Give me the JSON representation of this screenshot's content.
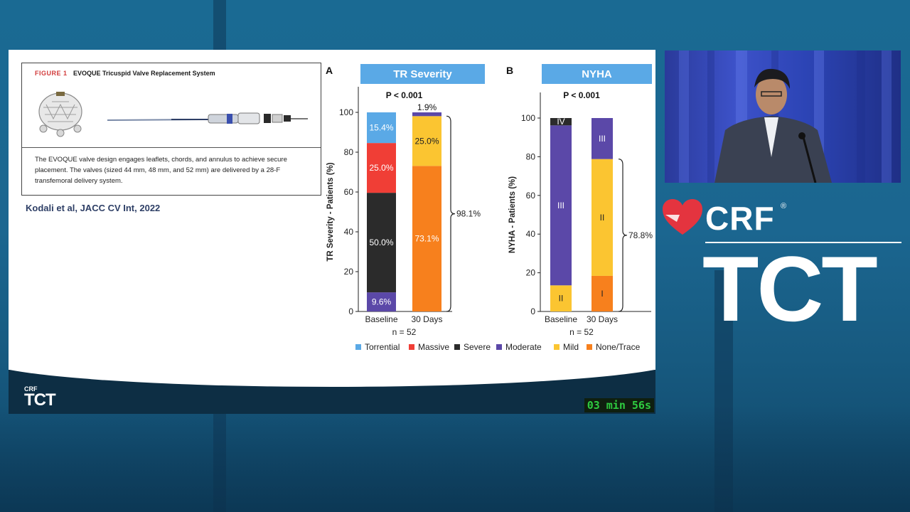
{
  "figure": {
    "number": "FIGURE 1",
    "title": "EVOQUE Tricuspid Valve Replacement System",
    "caption_lines": [
      "The EVOQUE valve design engages leaflets, chords, and annulus to achieve secure",
      "placement. The valves (sized 44 mm, 48 mm, and 52 mm) are delivered by a 28-F",
      "transfemoral delivery system."
    ]
  },
  "citation": "Kodali et al, JACC CV Int, 2022",
  "timer": "03 min 56s",
  "slide_footer": {
    "crf": "CRF",
    "tct": "TCT"
  },
  "brand": {
    "crf": "CRF",
    "reg": "®",
    "tct": "TCT"
  },
  "colors": {
    "Torrential": "#5aa9e6",
    "Massive": "#f03e36",
    "Severe": "#2b2b2b",
    "Moderate": "#5b48a8",
    "Mild": "#fbc531",
    "None/Trace": "#f7801d",
    "header_bg": "#5aa9e6",
    "IV": "#2b2b2b",
    "III": "#5b48a8",
    "II": "#fbc531",
    "I": "#f7801d"
  },
  "chart_data": [
    {
      "type": "bar",
      "stacked": true,
      "panel": "A",
      "header": "TR Severity",
      "pvalue": "P < 0.001",
      "ylabel": "TR Severity - Patients (%)",
      "ylim": [
        0,
        100
      ],
      "yticks": [
        "0",
        "20",
        "40",
        "60",
        "80",
        "100"
      ],
      "categories": [
        "Baseline",
        "30 Days"
      ],
      "n_label": "n = 52",
      "series": [
        {
          "name": "None/Trace",
          "values": [
            0,
            73.1
          ],
          "labels": [
            "",
            "73.1%"
          ]
        },
        {
          "name": "Mild",
          "values": [
            0,
            25.0
          ],
          "labels": [
            "",
            "25.0%"
          ]
        },
        {
          "name": "Moderate",
          "values": [
            9.6,
            1.9
          ],
          "labels": [
            "9.6%",
            "1.9%"
          ]
        },
        {
          "name": "Severe",
          "values": [
            50.0,
            0
          ],
          "labels": [
            "50.0%",
            ""
          ]
        },
        {
          "name": "Massive",
          "values": [
            25.0,
            0
          ],
          "labels": [
            "25.0%",
            ""
          ]
        },
        {
          "name": "Torrential",
          "values": [
            15.4,
            0
          ],
          "labels": [
            "15.4%",
            ""
          ]
        }
      ],
      "bracket": {
        "from": 0,
        "to": 98.1,
        "label": "98.1%"
      },
      "legend": [
        "Torrential",
        "Massive",
        "Severe",
        "Moderate",
        "Mild",
        "None/Trace"
      ]
    },
    {
      "type": "bar",
      "stacked": true,
      "panel": "B",
      "header": "NYHA",
      "pvalue": "P < 0.001",
      "ylabel": "NYHA - Patients (%)",
      "ylim": [
        0,
        100
      ],
      "yticks": [
        "0",
        "20",
        "40",
        "60",
        "80",
        "100"
      ],
      "categories": [
        "Baseline",
        "30 Days"
      ],
      "n_label": "n = 52",
      "series": [
        {
          "name": "I",
          "values": [
            0,
            18.4
          ],
          "labels": [
            "",
            "I"
          ]
        },
        {
          "name": "II",
          "values": [
            13.5,
            60.4
          ],
          "labels": [
            "II",
            "II"
          ]
        },
        {
          "name": "III",
          "values": [
            82.7,
            21.2
          ],
          "labels": [
            "III",
            "III"
          ]
        },
        {
          "name": "IV",
          "values": [
            3.8,
            0
          ],
          "labels": [
            "IV",
            ""
          ]
        }
      ],
      "bracket": {
        "from": 0,
        "to": 78.8,
        "label": "78.8%"
      }
    }
  ]
}
